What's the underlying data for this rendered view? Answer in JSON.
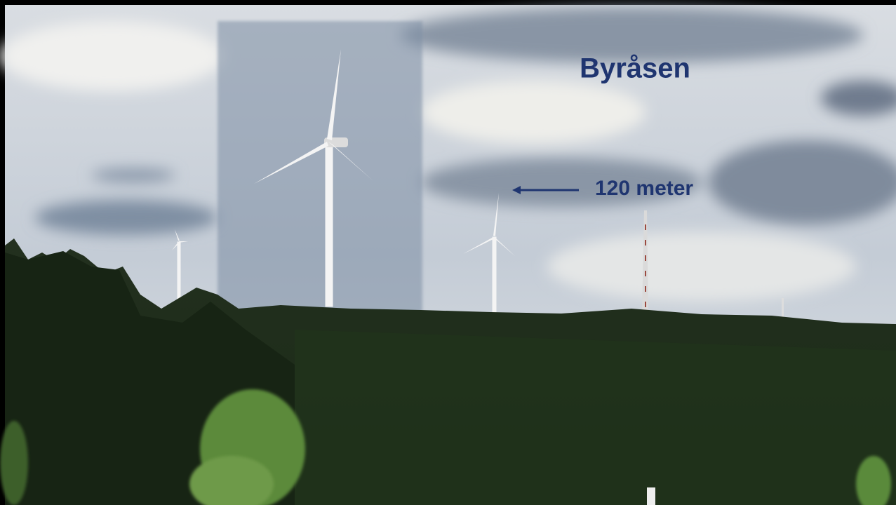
{
  "labels": {
    "site_name": "Byråsen",
    "height_annotation": "120 meter"
  }
}
